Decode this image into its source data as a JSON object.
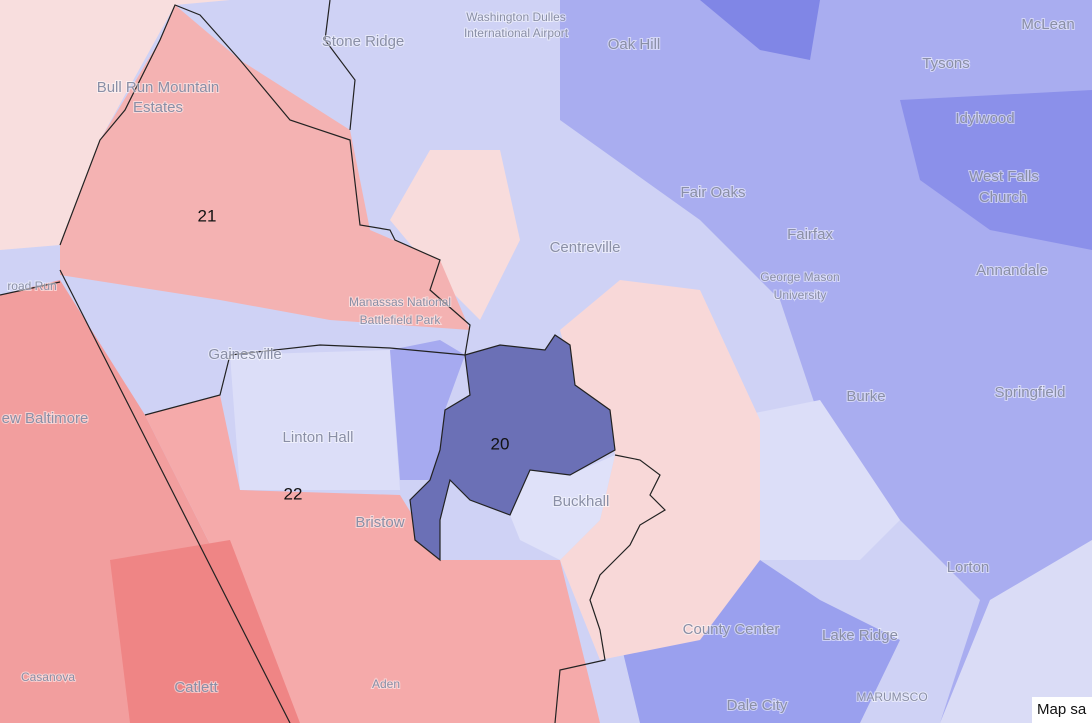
{
  "map": {
    "labels": [
      {
        "text": "Washington Dulles"
      },
      {
        "text": "International Airport"
      },
      {
        "text": "Stone Ridge"
      },
      {
        "text": "Oak Hill"
      },
      {
        "text": "McLean"
      },
      {
        "text": "Tysons"
      },
      {
        "text": "Idylwood"
      },
      {
        "text": "West Falls"
      },
      {
        "text": "Church"
      },
      {
        "text": "Bull Run Mountain"
      },
      {
        "text": "Estates"
      },
      {
        "text": "Fair Oaks"
      },
      {
        "text": "Centreville"
      },
      {
        "text": "Fairfax"
      },
      {
        "text": "George Mason"
      },
      {
        "text": "University"
      },
      {
        "text": "Annandale"
      },
      {
        "text": "Manassas National"
      },
      {
        "text": "Battlefield Park"
      },
      {
        "text": "Gainesville"
      },
      {
        "text": "ew Baltimore"
      },
      {
        "text": "Burke"
      },
      {
        "text": "Springfield"
      },
      {
        "text": "Linton Hall"
      },
      {
        "text": "Buckhall"
      },
      {
        "text": "Bristow"
      },
      {
        "text": "Lorton"
      },
      {
        "text": "County Center"
      },
      {
        "text": "Lake Ridge"
      },
      {
        "text": "Casanova"
      },
      {
        "text": "Catlett"
      },
      {
        "text": "Aden"
      },
      {
        "text": "Dale City"
      },
      {
        "text": "MARUMSCO"
      },
      {
        "text": "road Run"
      }
    ],
    "districts": [
      "21",
      "20",
      "22"
    ],
    "attribution": "Map sa"
  }
}
